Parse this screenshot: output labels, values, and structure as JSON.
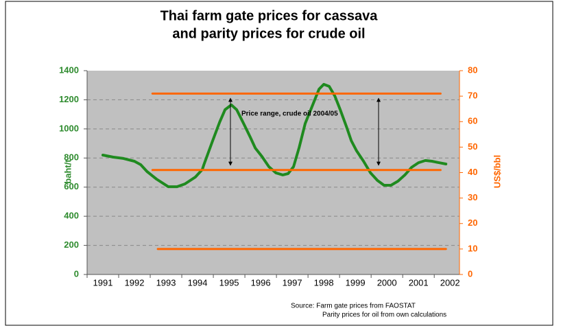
{
  "chart_data": {
    "type": "line",
    "title": [
      "Thai farm gate prices for cassava",
      "and parity prices for crude oil"
    ],
    "ylabel": "baht/t",
    "y2label": "US$/bbl",
    "annotation": "Price range, crude oil 2004/05",
    "source": [
      "Source:  Farm gate prices from FAOSTAT",
      "Parity prices for oil from own calculations"
    ],
    "xlim": [
      1990.5,
      2002.3
    ],
    "xticks": [
      1991,
      1992,
      1993,
      1994,
      1995,
      1996,
      1997,
      1998,
      1999,
      2000,
      2001,
      2002
    ],
    "ylim": [
      0,
      1400
    ],
    "yticks": [
      0,
      200,
      400,
      600,
      800,
      1000,
      1200,
      1400
    ],
    "y2lim": [
      0,
      80
    ],
    "y2ticks": [
      0,
      10,
      20,
      30,
      40,
      50,
      60,
      70,
      80
    ],
    "grid": true,
    "series": [
      {
        "color": "#1f8a1f",
        "x": [
          1991.0,
          1991.33,
          1991.65,
          1992.0,
          1992.2,
          1992.4,
          1992.7,
          1993.07,
          1993.35,
          1993.6,
          1993.93,
          1994.15,
          1994.2,
          1994.48,
          1994.7,
          1994.87,
          1995.07,
          1995.24,
          1995.46,
          1995.67,
          1995.83,
          1996.04,
          1996.26,
          1996.48,
          1996.7,
          1996.87,
          1997.04,
          1997.22,
          1997.41,
          1997.63,
          1997.85,
          1998.0,
          1998.17,
          1998.35,
          1998.52,
          1998.72,
          1998.87,
          1999.04,
          1999.26,
          1999.48,
          1999.7,
          1999.91,
          2000.13,
          2000.35,
          2000.57,
          2000.78,
          2001.0,
          2001.22,
          2001.43,
          2001.65,
          2001.87
        ],
        "values": [
          820,
          806,
          797,
          778,
          754,
          707,
          655,
          603,
          603,
          622,
          669,
          721,
          754,
          919,
          1047,
          1132,
          1165,
          1132,
          1037,
          943,
          868,
          811,
          740,
          698,
          684,
          693,
          740,
          872,
          1037,
          1155,
          1273,
          1306,
          1292,
          1226,
          1132,
          1014,
          919,
          849,
          778,
          698,
          646,
          613,
          613,
          641,
          684,
          736,
          768,
          783,
          778,
          768,
          759
        ]
      },
      {
        "color": "#ff6600",
        "axis": "y2",
        "x": [
          1992.57,
          2001.7
        ],
        "values": [
          71,
          71
        ]
      },
      {
        "color": "#ff6600",
        "axis": "y2",
        "x": [
          1992.57,
          2001.7
        ],
        "values": [
          41,
          41
        ]
      },
      {
        "color": "#ff6600",
        "axis": "y2",
        "x": [
          1992.74,
          2001.87
        ],
        "values": [
          10,
          10
        ]
      }
    ]
  }
}
